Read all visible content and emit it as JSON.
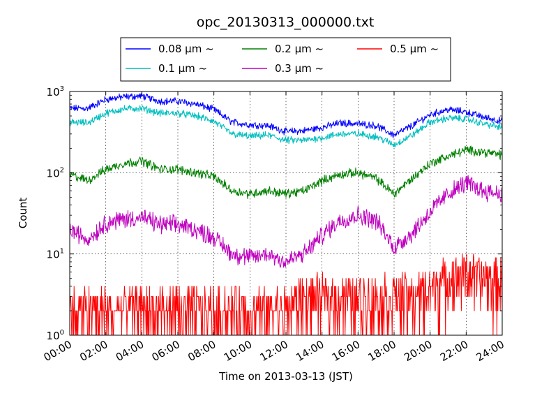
{
  "chart_data": {
    "type": "line",
    "title": "opc_20130313_000000.txt",
    "xlabel": "Time on 2013-03-13 (JST)",
    "ylabel": "Count",
    "yscale": "log",
    "xlim": [
      "00:00",
      "24:00"
    ],
    "ylim": [
      1,
      1000
    ],
    "grid": true,
    "legend_position": "top-center",
    "x_ticks": [
      "00:00",
      "02:00",
      "04:00",
      "06:00",
      "08:00",
      "10:00",
      "12:00",
      "14:00",
      "16:00",
      "18:00",
      "20:00",
      "22:00",
      "24:00"
    ],
    "y_ticks": [
      {
        "value": 1,
        "base": "10",
        "exp": "0"
      },
      {
        "value": 10,
        "base": "10",
        "exp": "1"
      },
      {
        "value": 100,
        "base": "10",
        "exp": "2"
      },
      {
        "value": 1000,
        "base": "10",
        "exp": "3"
      }
    ],
    "x_hours": [
      0,
      1,
      2,
      3,
      4,
      5,
      6,
      7,
      8,
      9,
      10,
      11,
      12,
      13,
      14,
      15,
      16,
      17,
      18,
      19,
      20,
      21,
      22,
      23,
      24
    ],
    "series": [
      {
        "name": "0.08 µm ~",
        "color": "#0000ff",
        "values": [
          620,
          620,
          800,
          860,
          880,
          760,
          760,
          700,
          600,
          420,
          390,
          380,
          320,
          330,
          360,
          410,
          400,
          380,
          290,
          380,
          520,
          600,
          560,
          480,
          430
        ]
      },
      {
        "name": "0.1 µm ~",
        "color": "#00bfbf",
        "values": [
          420,
          410,
          540,
          610,
          620,
          540,
          540,
          500,
          430,
          300,
          280,
          290,
          250,
          250,
          270,
          300,
          300,
          280,
          220,
          290,
          420,
          470,
          460,
          400,
          360
        ]
      },
      {
        "name": "0.2 µm ~",
        "color": "#008000",
        "values": [
          95,
          80,
          110,
          130,
          140,
          110,
          110,
          100,
          90,
          60,
          55,
          60,
          55,
          60,
          80,
          95,
          100,
          85,
          55,
          85,
          130,
          160,
          190,
          180,
          165
        ]
      },
      {
        "name": "0.3 µm ~",
        "color": "#bf00bf",
        "values": [
          20,
          15,
          24,
          27,
          28,
          23,
          23,
          20,
          16,
          10,
          9,
          10,
          8,
          10,
          17,
          26,
          30,
          26,
          12,
          18,
          33,
          55,
          75,
          60,
          55
        ]
      },
      {
        "name": "0.5 µm ~",
        "color": "#ff0000",
        "values": [
          2,
          2,
          2,
          2,
          2.2,
          2,
          2,
          2,
          2,
          2,
          2,
          2,
          2,
          3,
          3,
          3,
          3,
          3,
          3,
          3,
          4,
          5,
          6,
          5,
          5
        ]
      }
    ]
  }
}
